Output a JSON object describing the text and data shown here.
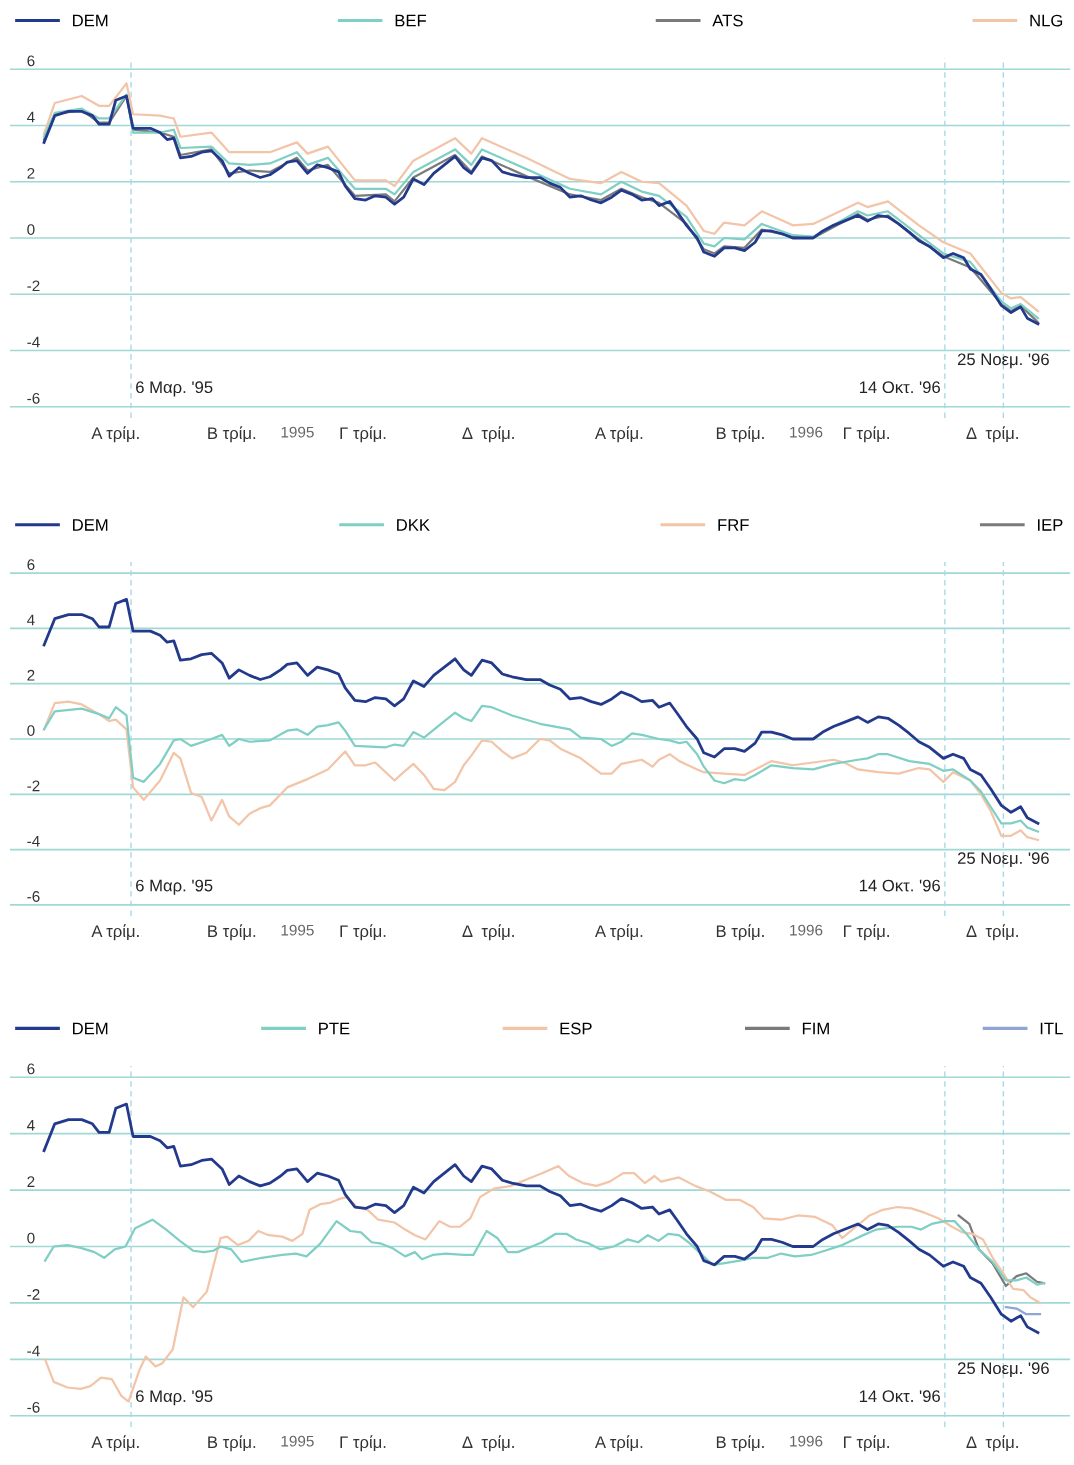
{
  "chart_data": [
    {
      "type": "line",
      "legend": "top",
      "grid": "y",
      "line_style": "solid",
      "xlim": [
        1994.435,
        1996.519
      ],
      "ylim": [
        -6.4,
        6.4
      ],
      "yticks": [
        -6,
        -4,
        -2,
        0,
        2,
        4,
        6
      ],
      "xticks": [
        {
          "value": 1994.643,
          "label": "Α τρίμ."
        },
        {
          "value": 1994.871,
          "label": "Β τρίμ."
        },
        {
          "value": 1995.129,
          "label": "Γ τρίμ."
        },
        {
          "value": 1995.376,
          "label": "Δ  τρίμ."
        },
        {
          "value": 1995.633,
          "label": "Α τρίμ."
        },
        {
          "value": 1995.871,
          "label": "Β τρίμ."
        },
        {
          "value": 1996.119,
          "label": "Γ τρίμ."
        },
        {
          "value": 1996.367,
          "label": "Δ  τρίμ."
        },
        1995,
        1996
      ],
      "ref_lines": [
        {
          "axis": "x",
          "value": 1994.673,
          "label": "6 Μαρ. '95",
          "color": "#a8d8e8",
          "line_style": "dashed"
        },
        {
          "axis": "x",
          "value": 1996.273,
          "label": "14 Οκτ. '96",
          "color": "#a8d8e8",
          "line_style": "dashed"
        },
        {
          "axis": "x",
          "value": 1996.388,
          "label": "25 Νοεμ. '96",
          "color": "#a8d8e8",
          "line_style": "dashed"
        }
      ],
      "series": [
        {
          "name": "DEM",
          "color": "#233a8c",
          "x": [
            1994.502,
            1994.523,
            1994.55,
            1994.576,
            1994.597,
            1994.61,
            1994.63,
            1994.643,
            1994.664,
            1994.677,
            1994.711,
            1994.73,
            1994.744,
            1994.757,
            1994.77,
            1994.791,
            1994.812,
            1994.831,
            1994.852,
            1994.866,
            1994.885,
            1994.906,
            1994.927,
            1994.946,
            1994.967,
            1994.98,
            1994.999,
            1995.02,
            1995.039,
            1995.06,
            1995.081,
            1995.094,
            1995.113,
            1995.134,
            1995.153,
            1995.174,
            1995.191,
            1995.209,
            1995.228,
            1995.249,
            1995.268,
            1995.289,
            1995.31,
            1995.327,
            1995.342,
            1995.363,
            1995.382,
            1995.403,
            1995.422,
            1995.45,
            1995.477,
            1995.496,
            1995.517,
            1995.536,
            1995.557,
            1995.578,
            1995.597,
            1995.618,
            1995.637,
            1995.658,
            1995.677,
            1995.698,
            1995.711,
            1995.732,
            1995.746,
            1995.765,
            1995.786,
            1995.799,
            1995.82,
            1995.839,
            1995.86,
            1995.879,
            1995.9,
            1995.913,
            1995.932,
            1995.953,
            1995.974,
            1995.993,
            1996.014,
            1996.033,
            1996.054,
            1996.075,
            1996.102,
            1996.121,
            1996.142,
            1996.161,
            1996.182,
            1996.203,
            1996.222,
            1996.243,
            1996.27,
            1996.289,
            1996.31,
            1996.323,
            1996.344,
            1996.363,
            1996.384,
            1996.403,
            1996.422,
            1996.435,
            1996.456
          ],
          "values": [
            3.4,
            4.35,
            4.5,
            4.5,
            4.35,
            4.05,
            4.05,
            4.9,
            5.05,
            3.9,
            3.9,
            3.75,
            3.5,
            3.55,
            2.85,
            2.9,
            3.05,
            3.1,
            2.75,
            2.2,
            2.5,
            2.3,
            2.15,
            2.25,
            2.5,
            2.7,
            2.75,
            2.3,
            2.6,
            2.5,
            2.35,
            1.85,
            1.4,
            1.35,
            1.5,
            1.45,
            1.2,
            1.45,
            2.1,
            1.9,
            2.3,
            2.6,
            2.9,
            2.5,
            2.3,
            2.85,
            2.75,
            2.35,
            2.25,
            2.15,
            2.15,
            1.95,
            1.8,
            1.45,
            1.5,
            1.35,
            1.25,
            1.45,
            1.7,
            1.55,
            1.35,
            1.4,
            1.15,
            1.3,
            0.95,
            0.45,
            0,
            -0.5,
            -0.65,
            -0.35,
            -0.35,
            -0.45,
            -0.15,
            0.25,
            0.25,
            0.15,
            0,
            0,
            0,
            0.25,
            0.45,
            0.6,
            0.8,
            0.6,
            0.8,
            0.75,
            0.5,
            0.2,
            -0.1,
            -0.3,
            -0.7,
            -0.55,
            -0.7,
            -1.1,
            -1.3,
            -1.8,
            -2.4,
            -2.65,
            -2.45,
            -2.85,
            -3.05
          ]
        },
        {
          "name": "BEF",
          "color": "#7fcfc4",
          "x": [
            1994.502,
            1994.523,
            1994.576,
            1994.61,
            1994.63,
            1994.664,
            1994.677,
            1994.73,
            1994.757,
            1994.77,
            1994.831,
            1994.866,
            1994.906,
            1994.946,
            1994.999,
            1995.02,
            1995.06,
            1995.113,
            1995.174,
            1995.191,
            1995.228,
            1995.31,
            1995.342,
            1995.363,
            1995.45,
            1995.536,
            1995.597,
            1995.637,
            1995.677,
            1995.711,
            1995.765,
            1995.799,
            1995.82,
            1995.839,
            1995.879,
            1995.913,
            1995.974,
            1996.014,
            1996.102,
            1996.121,
            1996.161,
            1996.222,
            1996.27,
            1996.323,
            1996.384,
            1996.403,
            1996.422,
            1996.456
          ],
          "values": [
            3.6,
            4.45,
            4.6,
            4.25,
            4.25,
            5.1,
            3.75,
            3.75,
            3.85,
            3.2,
            3.25,
            2.65,
            2.6,
            2.65,
            3.05,
            2.6,
            2.85,
            1.75,
            1.75,
            1.55,
            2.35,
            3.15,
            2.6,
            3.15,
            2.45,
            1.75,
            1.55,
            2.0,
            1.65,
            1.5,
            0.75,
            -0.2,
            -0.3,
            0.0,
            -0.05,
            0.5,
            0.1,
            0.05,
            0.95,
            0.8,
            0.95,
            0.1,
            -0.55,
            -0.85,
            -2.25,
            -2.5,
            -2.35,
            -2.85
          ]
        },
        {
          "name": "ATS",
          "color": "#7a7a7a",
          "x": [
            1994.502,
            1994.523,
            1994.576,
            1994.61,
            1994.63,
            1994.664,
            1994.677,
            1994.73,
            1994.757,
            1994.77,
            1994.831,
            1994.866,
            1994.906,
            1994.946,
            1994.999,
            1995.02,
            1995.06,
            1995.113,
            1995.174,
            1995.191,
            1995.228,
            1995.31,
            1995.342,
            1995.363,
            1995.45,
            1995.536,
            1995.597,
            1995.637,
            1995.677,
            1995.711,
            1995.765,
            1995.799,
            1995.82,
            1995.839,
            1995.879,
            1995.913,
            1995.974,
            1996.014,
            1996.102,
            1996.121,
            1996.161,
            1996.222,
            1996.27,
            1996.323,
            1996.384,
            1996.403,
            1996.422,
            1996.456
          ],
          "values": [
            3.5,
            4.4,
            4.55,
            4.1,
            4.1,
            5.05,
            3.85,
            3.75,
            3.6,
            2.95,
            3.15,
            2.3,
            2.4,
            2.35,
            2.85,
            2.4,
            2.6,
            1.5,
            1.55,
            1.3,
            2.15,
            2.95,
            2.35,
            2.9,
            2.2,
            1.55,
            1.35,
            1.75,
            1.45,
            1.25,
            0.5,
            -0.4,
            -0.55,
            -0.3,
            -0.35,
            0.3,
            0.05,
            0.0,
            0.85,
            0.65,
            0.8,
            -0.05,
            -0.65,
            -1.05,
            -2.35,
            -2.6,
            -2.4,
            -3.0
          ]
        },
        {
          "name": "NLG",
          "color": "#f2c4a8",
          "x": [
            1994.502,
            1994.523,
            1994.576,
            1994.61,
            1994.63,
            1994.664,
            1994.677,
            1994.73,
            1994.757,
            1994.77,
            1994.831,
            1994.866,
            1994.906,
            1994.946,
            1994.999,
            1995.02,
            1995.06,
            1995.113,
            1995.174,
            1995.191,
            1995.228,
            1995.31,
            1995.342,
            1995.363,
            1995.45,
            1995.536,
            1995.597,
            1995.637,
            1995.677,
            1995.711,
            1995.765,
            1995.799,
            1995.82,
            1995.839,
            1995.879,
            1995.913,
            1995.974,
            1996.014,
            1996.102,
            1996.121,
            1996.161,
            1996.222,
            1996.27,
            1996.323,
            1996.384,
            1996.403,
            1996.422,
            1996.456
          ],
          "values": [
            3.7,
            4.8,
            5.05,
            4.7,
            4.7,
            5.5,
            4.4,
            4.35,
            4.25,
            3.6,
            3.75,
            3.05,
            3.05,
            3.05,
            3.4,
            3.0,
            3.25,
            2.05,
            2.05,
            1.85,
            2.75,
            3.55,
            3.0,
            3.55,
            2.85,
            2.1,
            1.95,
            2.35,
            2.0,
            1.95,
            1.15,
            0.25,
            0.15,
            0.55,
            0.45,
            0.95,
            0.45,
            0.5,
            1.25,
            1.1,
            1.3,
            0.45,
            -0.15,
            -0.55,
            -1.95,
            -2.15,
            -2.1,
            -2.6
          ]
        }
      ]
    },
    {
      "type": "line",
      "legend": "top",
      "grid": "y",
      "line_style": "solid",
      "xlim": [
        1994.435,
        1996.519
      ],
      "ylim": [
        -6.4,
        6.4
      ],
      "yticks": [
        -6,
        -4,
        -2,
        0,
        2,
        4,
        6
      ],
      "xticks": [
        {
          "value": 1994.643,
          "label": "Α τρίμ."
        },
        {
          "value": 1994.871,
          "label": "Β τρίμ."
        },
        {
          "value": 1995.129,
          "label": "Γ τρίμ."
        },
        {
          "value": 1995.376,
          "label": "Δ  τρίμ."
        },
        {
          "value": 1995.633,
          "label": "Α τρίμ."
        },
        {
          "value": 1995.871,
          "label": "Β τρίμ."
        },
        {
          "value": 1996.119,
          "label": "Γ τρίμ."
        },
        {
          "value": 1996.367,
          "label": "Δ  τρίμ."
        },
        1995,
        1996
      ],
      "ref_lines": [
        {
          "axis": "x",
          "value": 1994.673,
          "label": "6 Μαρ. '95",
          "color": "#a8d8e8",
          "line_style": "dashed"
        },
        {
          "axis": "x",
          "value": 1996.273,
          "label": "14 Οκτ. '96",
          "color": "#a8d8e8",
          "line_style": "dashed"
        },
        {
          "axis": "x",
          "value": 1996.388,
          "label": "25 Νοεμ. '96",
          "color": "#a8d8e8",
          "line_style": "dashed"
        }
      ],
      "series": [
        {
          "name": "DEM",
          "color": "#233a8c",
          "x": [
            1994.502,
            1994.523,
            1994.55,
            1994.576,
            1994.597,
            1994.61,
            1994.63,
            1994.643,
            1994.664,
            1994.677,
            1994.711,
            1994.73,
            1994.744,
            1994.757,
            1994.77,
            1994.791,
            1994.812,
            1994.831,
            1994.852,
            1994.866,
            1994.885,
            1994.906,
            1994.927,
            1994.946,
            1994.967,
            1994.98,
            1994.999,
            1995.02,
            1995.039,
            1995.06,
            1995.081,
            1995.094,
            1995.113,
            1995.134,
            1995.153,
            1995.174,
            1995.191,
            1995.209,
            1995.228,
            1995.249,
            1995.268,
            1995.289,
            1995.31,
            1995.327,
            1995.342,
            1995.363,
            1995.382,
            1995.403,
            1995.422,
            1995.45,
            1995.477,
            1995.496,
            1995.517,
            1995.536,
            1995.557,
            1995.578,
            1995.597,
            1995.618,
            1995.637,
            1995.658,
            1995.677,
            1995.698,
            1995.711,
            1995.732,
            1995.746,
            1995.765,
            1995.786,
            1995.799,
            1995.82,
            1995.839,
            1995.86,
            1995.879,
            1995.9,
            1995.913,
            1995.932,
            1995.953,
            1995.974,
            1995.993,
            1996.014,
            1996.033,
            1996.054,
            1996.075,
            1996.102,
            1996.121,
            1996.142,
            1996.161,
            1996.182,
            1996.203,
            1996.222,
            1996.243,
            1996.27,
            1996.289,
            1996.31,
            1996.323,
            1996.344,
            1996.363,
            1996.384,
            1996.403,
            1996.422,
            1996.435,
            1996.456
          ],
          "values": [
            3.4,
            4.35,
            4.5,
            4.5,
            4.35,
            4.05,
            4.05,
            4.9,
            5.05,
            3.9,
            3.9,
            3.75,
            3.5,
            3.55,
            2.85,
            2.9,
            3.05,
            3.1,
            2.75,
            2.2,
            2.5,
            2.3,
            2.15,
            2.25,
            2.5,
            2.7,
            2.75,
            2.3,
            2.6,
            2.5,
            2.35,
            1.85,
            1.4,
            1.35,
            1.5,
            1.45,
            1.2,
            1.45,
            2.1,
            1.9,
            2.3,
            2.6,
            2.9,
            2.5,
            2.3,
            2.85,
            2.75,
            2.35,
            2.25,
            2.15,
            2.15,
            1.95,
            1.8,
            1.45,
            1.5,
            1.35,
            1.25,
            1.45,
            1.7,
            1.55,
            1.35,
            1.4,
            1.15,
            1.3,
            0.95,
            0.45,
            0,
            -0.5,
            -0.65,
            -0.35,
            -0.35,
            -0.45,
            -0.15,
            0.25,
            0.25,
            0.15,
            0,
            0,
            0,
            0.25,
            0.45,
            0.6,
            0.8,
            0.6,
            0.8,
            0.75,
            0.5,
            0.2,
            -0.1,
            -0.3,
            -0.7,
            -0.55,
            -0.7,
            -1.1,
            -1.3,
            -1.8,
            -2.4,
            -2.65,
            -2.45,
            -2.85,
            -3.05
          ]
        },
        {
          "name": "DKK",
          "color": "#7fcfc4",
          "x": [
            1994.502,
            1994.523,
            1994.576,
            1994.61,
            1994.63,
            1994.643,
            1994.664,
            1994.677,
            1994.698,
            1994.73,
            1994.757,
            1994.77,
            1994.791,
            1994.831,
            1994.852,
            1994.866,
            1994.885,
            1994.906,
            1994.946,
            1994.98,
            1994.999,
            1995.02,
            1995.039,
            1995.06,
            1995.081,
            1995.094,
            1995.113,
            1995.174,
            1995.191,
            1995.209,
            1995.228,
            1995.249,
            1995.289,
            1995.31,
            1995.327,
            1995.342,
            1995.363,
            1995.382,
            1995.422,
            1995.477,
            1995.536,
            1995.557,
            1995.597,
            1995.618,
            1995.637,
            1995.658,
            1995.677,
            1995.711,
            1995.732,
            1995.751,
            1995.765,
            1995.786,
            1995.799,
            1995.82,
            1995.839,
            1995.86,
            1995.879,
            1995.9,
            1995.932,
            1995.974,
            1996.014,
            1996.054,
            1996.102,
            1996.121,
            1996.142,
            1996.161,
            1996.203,
            1996.243,
            1996.27,
            1996.289,
            1996.323,
            1996.344,
            1996.363,
            1996.384,
            1996.403,
            1996.422,
            1996.435,
            1996.456
          ],
          "values": [
            0.35,
            1.0,
            1.1,
            0.9,
            0.75,
            1.15,
            0.85,
            -1.4,
            -1.55,
            -0.9,
            -0.05,
            0.0,
            -0.25,
            0.0,
            0.15,
            -0.25,
            0.0,
            -0.1,
            -0.05,
            0.3,
            0.35,
            0.15,
            0.45,
            0.5,
            0.6,
            0.3,
            -0.25,
            -0.3,
            -0.2,
            -0.25,
            0.25,
            0.05,
            0.65,
            0.95,
            0.75,
            0.65,
            1.2,
            1.15,
            0.85,
            0.55,
            0.35,
            0.05,
            0.0,
            -0.25,
            -0.1,
            0.2,
            0.15,
            0.0,
            -0.05,
            -0.15,
            -0.1,
            -0.55,
            -1.0,
            -1.5,
            -1.6,
            -1.45,
            -1.5,
            -1.3,
            -0.95,
            -1.05,
            -1.1,
            -0.9,
            -0.75,
            -0.7,
            -0.55,
            -0.55,
            -0.8,
            -0.9,
            -1.15,
            -1.1,
            -1.5,
            -1.9,
            -2.45,
            -3.05,
            -3.05,
            -2.95,
            -3.2,
            -3.35
          ]
        },
        {
          "name": "FRF",
          "color": "#f2c4a8",
          "x": [
            1994.502,
            1994.523,
            1994.55,
            1994.576,
            1994.61,
            1994.63,
            1994.643,
            1994.664,
            1994.677,
            1994.698,
            1994.73,
            1994.757,
            1994.77,
            1994.791,
            1994.812,
            1994.831,
            1994.852,
            1994.866,
            1994.885,
            1994.906,
            1994.927,
            1994.946,
            1994.98,
            1995.02,
            1995.06,
            1995.094,
            1995.113,
            1995.134,
            1995.153,
            1995.191,
            1995.209,
            1995.228,
            1995.249,
            1995.268,
            1995.289,
            1995.31,
            1995.327,
            1995.342,
            1995.363,
            1995.382,
            1995.403,
            1995.422,
            1995.45,
            1995.477,
            1995.496,
            1995.517,
            1995.557,
            1995.597,
            1995.618,
            1995.637,
            1995.677,
            1995.698,
            1995.711,
            1995.732,
            1995.751,
            1995.786,
            1995.799,
            1995.839,
            1995.879,
            1995.9,
            1995.932,
            1995.974,
            1996.014,
            1996.054,
            1996.075,
            1996.102,
            1996.142,
            1996.182,
            1996.222,
            1996.243,
            1996.27,
            1996.289,
            1996.323,
            1996.344,
            1996.363,
            1996.384,
            1996.403,
            1996.422,
            1996.435,
            1996.456
          ],
          "values": [
            0.35,
            1.3,
            1.35,
            1.25,
            0.9,
            0.65,
            0.7,
            0.35,
            -1.75,
            -2.2,
            -1.5,
            -0.5,
            -0.7,
            -1.95,
            -2.1,
            -2.95,
            -2.2,
            -2.8,
            -3.1,
            -2.7,
            -2.5,
            -2.4,
            -1.75,
            -1.45,
            -1.1,
            -0.45,
            -0.95,
            -0.95,
            -0.85,
            -1.5,
            -1.2,
            -0.9,
            -1.3,
            -1.8,
            -1.85,
            -1.55,
            -0.95,
            -0.6,
            -0.05,
            -0.1,
            -0.45,
            -0.7,
            -0.5,
            0.0,
            -0.05,
            -0.35,
            -0.7,
            -1.25,
            -1.25,
            -0.9,
            -0.75,
            -1.0,
            -0.75,
            -0.55,
            -0.8,
            -1.1,
            -1.2,
            -1.25,
            -1.3,
            -1.1,
            -0.8,
            -0.95,
            -0.85,
            -0.75,
            -0.85,
            -1.1,
            -1.2,
            -1.25,
            -1.05,
            -1.1,
            -1.55,
            -1.2,
            -1.5,
            -2.0,
            -2.6,
            -3.5,
            -3.5,
            -3.3,
            -3.55,
            -3.65
          ]
        },
        {
          "name": "IEP",
          "color": "#7a7a7a"
        }
      ]
    },
    {
      "type": "line",
      "legend": "top",
      "grid": "y",
      "line_style": "solid",
      "xlim": [
        1994.435,
        1996.519
      ],
      "ylim": [
        -6.4,
        6.4
      ],
      "yticks": [
        -6,
        -4,
        -2,
        0,
        2,
        4,
        6
      ],
      "xticks": [
        {
          "value": 1994.643,
          "label": "Α τρίμ."
        },
        {
          "value": 1994.871,
          "label": "Β τρίμ."
        },
        {
          "value": 1995.129,
          "label": "Γ τρίμ."
        },
        {
          "value": 1995.376,
          "label": "Δ  τρίμ."
        },
        {
          "value": 1995.633,
          "label": "Α τρίμ."
        },
        {
          "value": 1995.871,
          "label": "Β τρίμ."
        },
        {
          "value": 1996.119,
          "label": "Γ τρίμ."
        },
        {
          "value": 1996.367,
          "label": "Δ  τρίμ."
        },
        1995,
        1996
      ],
      "ref_lines": [
        {
          "axis": "x",
          "value": 1994.673,
          "label": "6 Μαρ. '95",
          "color": "#a8d8e8",
          "line_style": "dashed"
        },
        {
          "axis": "x",
          "value": 1996.273,
          "label": "14 Οκτ. '96",
          "color": "#a8d8e8",
          "line_style": "dashed"
        },
        {
          "axis": "x",
          "value": 1996.388,
          "label": "25 Νοεμ. '96",
          "color": "#a8d8e8",
          "line_style": "dashed"
        }
      ],
      "series": [
        {
          "name": "DEM",
          "color": "#233a8c",
          "x": [
            1994.502,
            1994.523,
            1994.55,
            1994.576,
            1994.597,
            1994.61,
            1994.63,
            1994.643,
            1994.664,
            1994.677,
            1994.711,
            1994.73,
            1994.744,
            1994.757,
            1994.77,
            1994.791,
            1994.812,
            1994.831,
            1994.852,
            1994.866,
            1994.885,
            1994.906,
            1994.927,
            1994.946,
            1994.967,
            1994.98,
            1994.999,
            1995.02,
            1995.039,
            1995.06,
            1995.081,
            1995.094,
            1995.113,
            1995.134,
            1995.153,
            1995.174,
            1995.191,
            1995.209,
            1995.228,
            1995.249,
            1995.268,
            1995.289,
            1995.31,
            1995.327,
            1995.342,
            1995.363,
            1995.382,
            1995.403,
            1995.422,
            1995.45,
            1995.477,
            1995.496,
            1995.517,
            1995.536,
            1995.557,
            1995.578,
            1995.597,
            1995.618,
            1995.637,
            1995.658,
            1995.677,
            1995.698,
            1995.711,
            1995.732,
            1995.746,
            1995.765,
            1995.786,
            1995.799,
            1995.82,
            1995.839,
            1995.86,
            1995.879,
            1995.9,
            1995.913,
            1995.932,
            1995.953,
            1995.974,
            1995.993,
            1996.014,
            1996.033,
            1996.054,
            1996.075,
            1996.102,
            1996.121,
            1996.142,
            1996.161,
            1996.182,
            1996.203,
            1996.222,
            1996.243,
            1996.27,
            1996.289,
            1996.31,
            1996.323,
            1996.344,
            1996.363,
            1996.384,
            1996.403,
            1996.422,
            1996.435,
            1996.456
          ],
          "values": [
            3.4,
            4.35,
            4.5,
            4.5,
            4.35,
            4.05,
            4.05,
            4.9,
            5.05,
            3.9,
            3.9,
            3.75,
            3.5,
            3.55,
            2.85,
            2.9,
            3.05,
            3.1,
            2.75,
            2.2,
            2.5,
            2.3,
            2.15,
            2.25,
            2.5,
            2.7,
            2.75,
            2.3,
            2.6,
            2.5,
            2.35,
            1.85,
            1.4,
            1.35,
            1.5,
            1.45,
            1.2,
            1.45,
            2.1,
            1.9,
            2.3,
            2.6,
            2.9,
            2.5,
            2.3,
            2.85,
            2.75,
            2.35,
            2.25,
            2.15,
            2.15,
            1.95,
            1.8,
            1.45,
            1.5,
            1.35,
            1.25,
            1.45,
            1.7,
            1.55,
            1.35,
            1.4,
            1.15,
            1.3,
            0.95,
            0.45,
            0,
            -0.5,
            -0.65,
            -0.35,
            -0.35,
            -0.45,
            -0.15,
            0.25,
            0.25,
            0.15,
            0,
            0,
            0,
            0.25,
            0.45,
            0.6,
            0.8,
            0.6,
            0.8,
            0.75,
            0.5,
            0.2,
            -0.1,
            -0.3,
            -0.7,
            -0.55,
            -0.7,
            -1.1,
            -1.3,
            -1.8,
            -2.4,
            -2.65,
            -2.45,
            -2.85,
            -3.05
          ]
        },
        {
          "name": "PTE",
          "color": "#7fcfc4",
          "x": [
            1994.504,
            1994.521,
            1994.548,
            1994.574,
            1994.601,
            1994.62,
            1994.641,
            1994.662,
            1994.681,
            1994.715,
            1994.742,
            1994.769,
            1994.795,
            1994.816,
            1994.835,
            1994.849,
            1994.87,
            1994.89,
            1994.93,
            1994.97,
            1994.997,
            1995.018,
            1995.045,
            1995.077,
            1995.104,
            1995.125,
            1995.146,
            1995.165,
            1995.186,
            1995.212,
            1995.231,
            1995.245,
            1995.266,
            1995.292,
            1995.327,
            1995.346,
            1995.372,
            1995.393,
            1995.414,
            1995.433,
            1995.454,
            1995.481,
            1995.508,
            1995.529,
            1995.548,
            1995.574,
            1995.595,
            1995.622,
            1995.649,
            1995.67,
            1995.689,
            1995.71,
            1995.729,
            1995.75,
            1995.769,
            1995.79,
            1995.816,
            1995.837,
            1995.87,
            1995.896,
            1995.925,
            1995.951,
            1995.978,
            1996.01,
            1996.037,
            1996.071,
            1996.106,
            1996.138,
            1996.159,
            1996.18,
            1996.207,
            1996.226,
            1996.247,
            1996.273,
            1996.292,
            1996.313,
            1996.34,
            1996.367,
            1996.393,
            1996.414,
            1996.433,
            1996.454,
            1996.468
          ],
          "values": [
            -0.5,
            0.0,
            0.05,
            -0.05,
            -0.2,
            -0.4,
            -0.1,
            0.0,
            0.65,
            0.95,
            0.6,
            0.2,
            -0.15,
            -0.2,
            -0.15,
            0.0,
            -0.1,
            -0.55,
            -0.4,
            -0.3,
            -0.25,
            -0.35,
            0.1,
            0.9,
            0.55,
            0.5,
            0.15,
            0.1,
            -0.05,
            -0.35,
            -0.2,
            -0.45,
            -0.3,
            -0.25,
            -0.3,
            -0.3,
            0.55,
            0.3,
            -0.2,
            -0.2,
            -0.05,
            0.15,
            0.45,
            0.45,
            0.25,
            0.1,
            -0.1,
            0.0,
            0.25,
            0.15,
            0.4,
            0.2,
            0.45,
            0.4,
            0.15,
            -0.2,
            -0.65,
            -0.6,
            -0.5,
            -0.4,
            -0.4,
            -0.25,
            -0.35,
            -0.3,
            -0.15,
            0.05,
            0.35,
            0.6,
            0.65,
            0.7,
            0.7,
            0.6,
            0.8,
            0.9,
            0.9,
            0.5,
            -0.1,
            -0.55,
            -1.2,
            -1.2,
            -1.1,
            -1.35,
            -1.3
          ]
        },
        {
          "name": "ESP",
          "color": "#f2c4a8",
          "x": [
            1994.504,
            1994.521,
            1994.548,
            1994.574,
            1994.593,
            1994.614,
            1994.635,
            1994.654,
            1994.668,
            1994.689,
            1994.702,
            1994.721,
            1994.734,
            1994.755,
            1994.776,
            1994.795,
            1994.822,
            1994.849,
            1994.862,
            1994.883,
            1994.904,
            1994.923,
            1994.944,
            1994.97,
            1994.99,
            1995.01,
            1995.024,
            1995.045,
            1995.064,
            1995.085,
            1995.098,
            1995.117,
            1995.138,
            1995.159,
            1995.191,
            1995.212,
            1995.231,
            1995.252,
            1995.279,
            1995.3,
            1995.319,
            1995.34,
            1995.359,
            1995.386,
            1995.42,
            1995.454,
            1995.481,
            1995.513,
            1995.534,
            1995.561,
            1995.588,
            1995.614,
            1995.641,
            1995.662,
            1995.683,
            1995.702,
            1995.715,
            1995.75,
            1995.782,
            1995.811,
            1995.843,
            1995.87,
            1995.896,
            1995.917,
            1995.951,
            1995.984,
            1996.018,
            1996.052,
            1996.071,
            1996.098,
            1996.125,
            1996.151,
            1996.18,
            1996.207,
            1996.233,
            1996.26,
            1996.287,
            1996.308,
            1996.327,
            1996.348,
            1996.367,
            1996.388,
            1996.407,
            1996.428,
            1996.441,
            1996.46
          ],
          "values": [
            -4.0,
            -4.8,
            -5.0,
            -5.05,
            -4.95,
            -4.65,
            -4.7,
            -5.3,
            -5.5,
            -4.4,
            -3.9,
            -4.25,
            -4.15,
            -3.65,
            -1.8,
            -2.15,
            -1.6,
            0.3,
            0.35,
            0.05,
            0.2,
            0.55,
            0.4,
            0.35,
            0.2,
            0.45,
            1.3,
            1.5,
            1.55,
            1.7,
            1.75,
            1.4,
            1.3,
            0.95,
            0.85,
            0.6,
            0.4,
            0.25,
            0.9,
            0.7,
            0.7,
            1.0,
            1.75,
            2.05,
            2.15,
            2.4,
            2.6,
            2.85,
            2.5,
            2.25,
            2.15,
            2.3,
            2.6,
            2.6,
            2.25,
            2.5,
            2.3,
            2.45,
            2.15,
            1.95,
            1.65,
            1.65,
            1.4,
            1.0,
            0.95,
            1.1,
            1.05,
            0.75,
            0.3,
            0.7,
            1.1,
            1.3,
            1.4,
            1.35,
            1.2,
            1.0,
            0.7,
            0.5,
            0.45,
            0.25,
            -0.4,
            -0.95,
            -1.5,
            -1.55,
            -1.8,
            -2.0
          ]
        },
        {
          "name": "FIM",
          "color": "#7a7a7a",
          "x": [
            1996.3,
            1996.321,
            1996.34,
            1996.367,
            1996.393,
            1996.414,
            1996.433,
            1996.454,
            1996.468
          ],
          "values": [
            1.1,
            0.8,
            -0.1,
            -0.6,
            -1.4,
            -1.05,
            -0.95,
            -1.25,
            -1.3
          ]
        },
        {
          "name": "ITL",
          "color": "#8fa5d6",
          "x": [
            1996.393,
            1996.414,
            1996.433,
            1996.46
          ],
          "values": [
            -2.15,
            -2.2,
            -2.4,
            -2.4
          ]
        }
      ]
    }
  ]
}
